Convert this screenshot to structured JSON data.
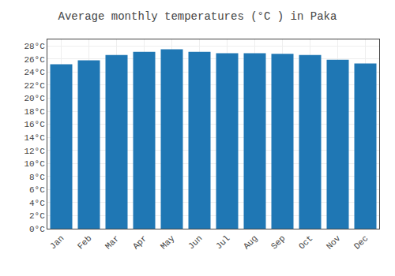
{
  "chart_data": {
    "type": "bar",
    "title": "Average monthly temperatures (°C ) in Paka",
    "categories": [
      "Jan",
      "Feb",
      "Mar",
      "Apr",
      "May",
      "Jun",
      "Jul",
      "Aug",
      "Sep",
      "Oct",
      "Nov",
      "Dec"
    ],
    "values": [
      25.2,
      25.8,
      26.6,
      27.1,
      27.5,
      27.1,
      26.9,
      26.9,
      26.8,
      26.6,
      25.9,
      25.3
    ],
    "ylim": [
      0,
      29
    ],
    "yticks": [
      {
        "value": 0,
        "label": "0°C"
      },
      {
        "value": 2,
        "label": "2°C"
      },
      {
        "value": 4,
        "label": "4°C"
      },
      {
        "value": 6,
        "label": "6°C"
      },
      {
        "value": 8,
        "label": "8°C"
      },
      {
        "value": 10,
        "label": "10°C"
      },
      {
        "value": 12,
        "label": "12°C"
      },
      {
        "value": 14,
        "label": "14°C"
      },
      {
        "value": 16,
        "label": "16°C"
      },
      {
        "value": 18,
        "label": "18°C"
      },
      {
        "value": 20,
        "label": "20°C"
      },
      {
        "value": 22,
        "label": "22°C"
      },
      {
        "value": 24,
        "label": "24°C"
      },
      {
        "value": 26,
        "label": "26°C"
      },
      {
        "value": 28,
        "label": "28°C"
      }
    ],
    "grid": true
  }
}
